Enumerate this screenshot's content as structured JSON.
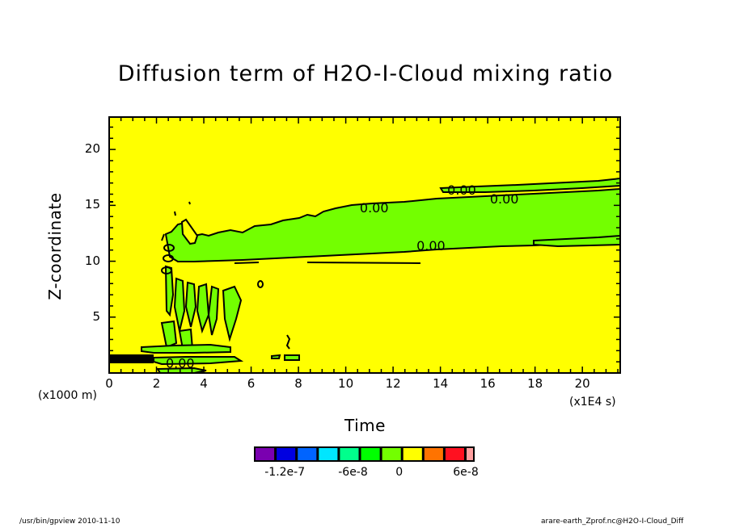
{
  "chart_data": {
    "type": "heatmap",
    "subtype": "filled-contour",
    "title": "Diffusion term of H2O-I-Cloud mixing ratio",
    "xlabel": "Time",
    "x_unit": "(x1E4 s)",
    "ylabel": "Z-coordinate",
    "y_unit": "(x1000 m)",
    "xlim": [
      0,
      21.6
    ],
    "ylim": [
      0,
      22.9
    ],
    "x_ticks": [
      "0",
      "2",
      "4",
      "6",
      "8",
      "10",
      "12",
      "14",
      "16",
      "18",
      "20"
    ],
    "x_tick_values": [
      0,
      2,
      4,
      6,
      8,
      10,
      12,
      14,
      16,
      18,
      20
    ],
    "y_ticks": [
      "5",
      "10",
      "15",
      "20"
    ],
    "y_tick_values": [
      5,
      10,
      15,
      20
    ],
    "contour_labels": [
      {
        "text": "0.00",
        "x": 11.2,
        "y": 14.8
      },
      {
        "text": "0.00",
        "x": 14.9,
        "y": 16.4
      },
      {
        "text": "0.00",
        "x": 16.7,
        "y": 15.6
      },
      {
        "text": "0.00",
        "x": 13.6,
        "y": 11.4
      },
      {
        "text": "0.00",
        "x": 3.0,
        "y": 0.9
      }
    ],
    "background_level": "0 to 1.2e-8",
    "region_level": "-1.2e-8 to 0",
    "colorbar": {
      "levels": [
        -1.2e-07,
        -1.08e-07,
        -9.6e-08,
        -8.4e-08,
        -7.2e-08,
        -6e-08,
        -4.8e-08,
        -3.6e-08,
        -2.4e-08,
        -1.2e-08,
        0,
        1.2e-08,
        2.4e-08,
        3.6e-08,
        4.8e-08,
        6e-08
      ],
      "tick_labels": [
        "-1.2e-7",
        "-6e-8",
        "0",
        "6e-8"
      ],
      "colors": [
        "#7a00b0",
        "#0000e0",
        "#0064ff",
        "#00e6ff",
        "#00ff8c",
        "#00ff00",
        "#73ff00",
        "#ffff00",
        "#ff7300",
        "#ff1020",
        "#ffa0a0"
      ]
    }
  },
  "colors": {
    "background_fill": "#ffff00",
    "negative_fill": "#73ff00",
    "contour_line": "#000000"
  },
  "footer": {
    "left": "/usr/bin/gpview   2010-11-10",
    "right": "arare-earth_Zprof.nc@H2O-I-Cloud_Diff"
  }
}
